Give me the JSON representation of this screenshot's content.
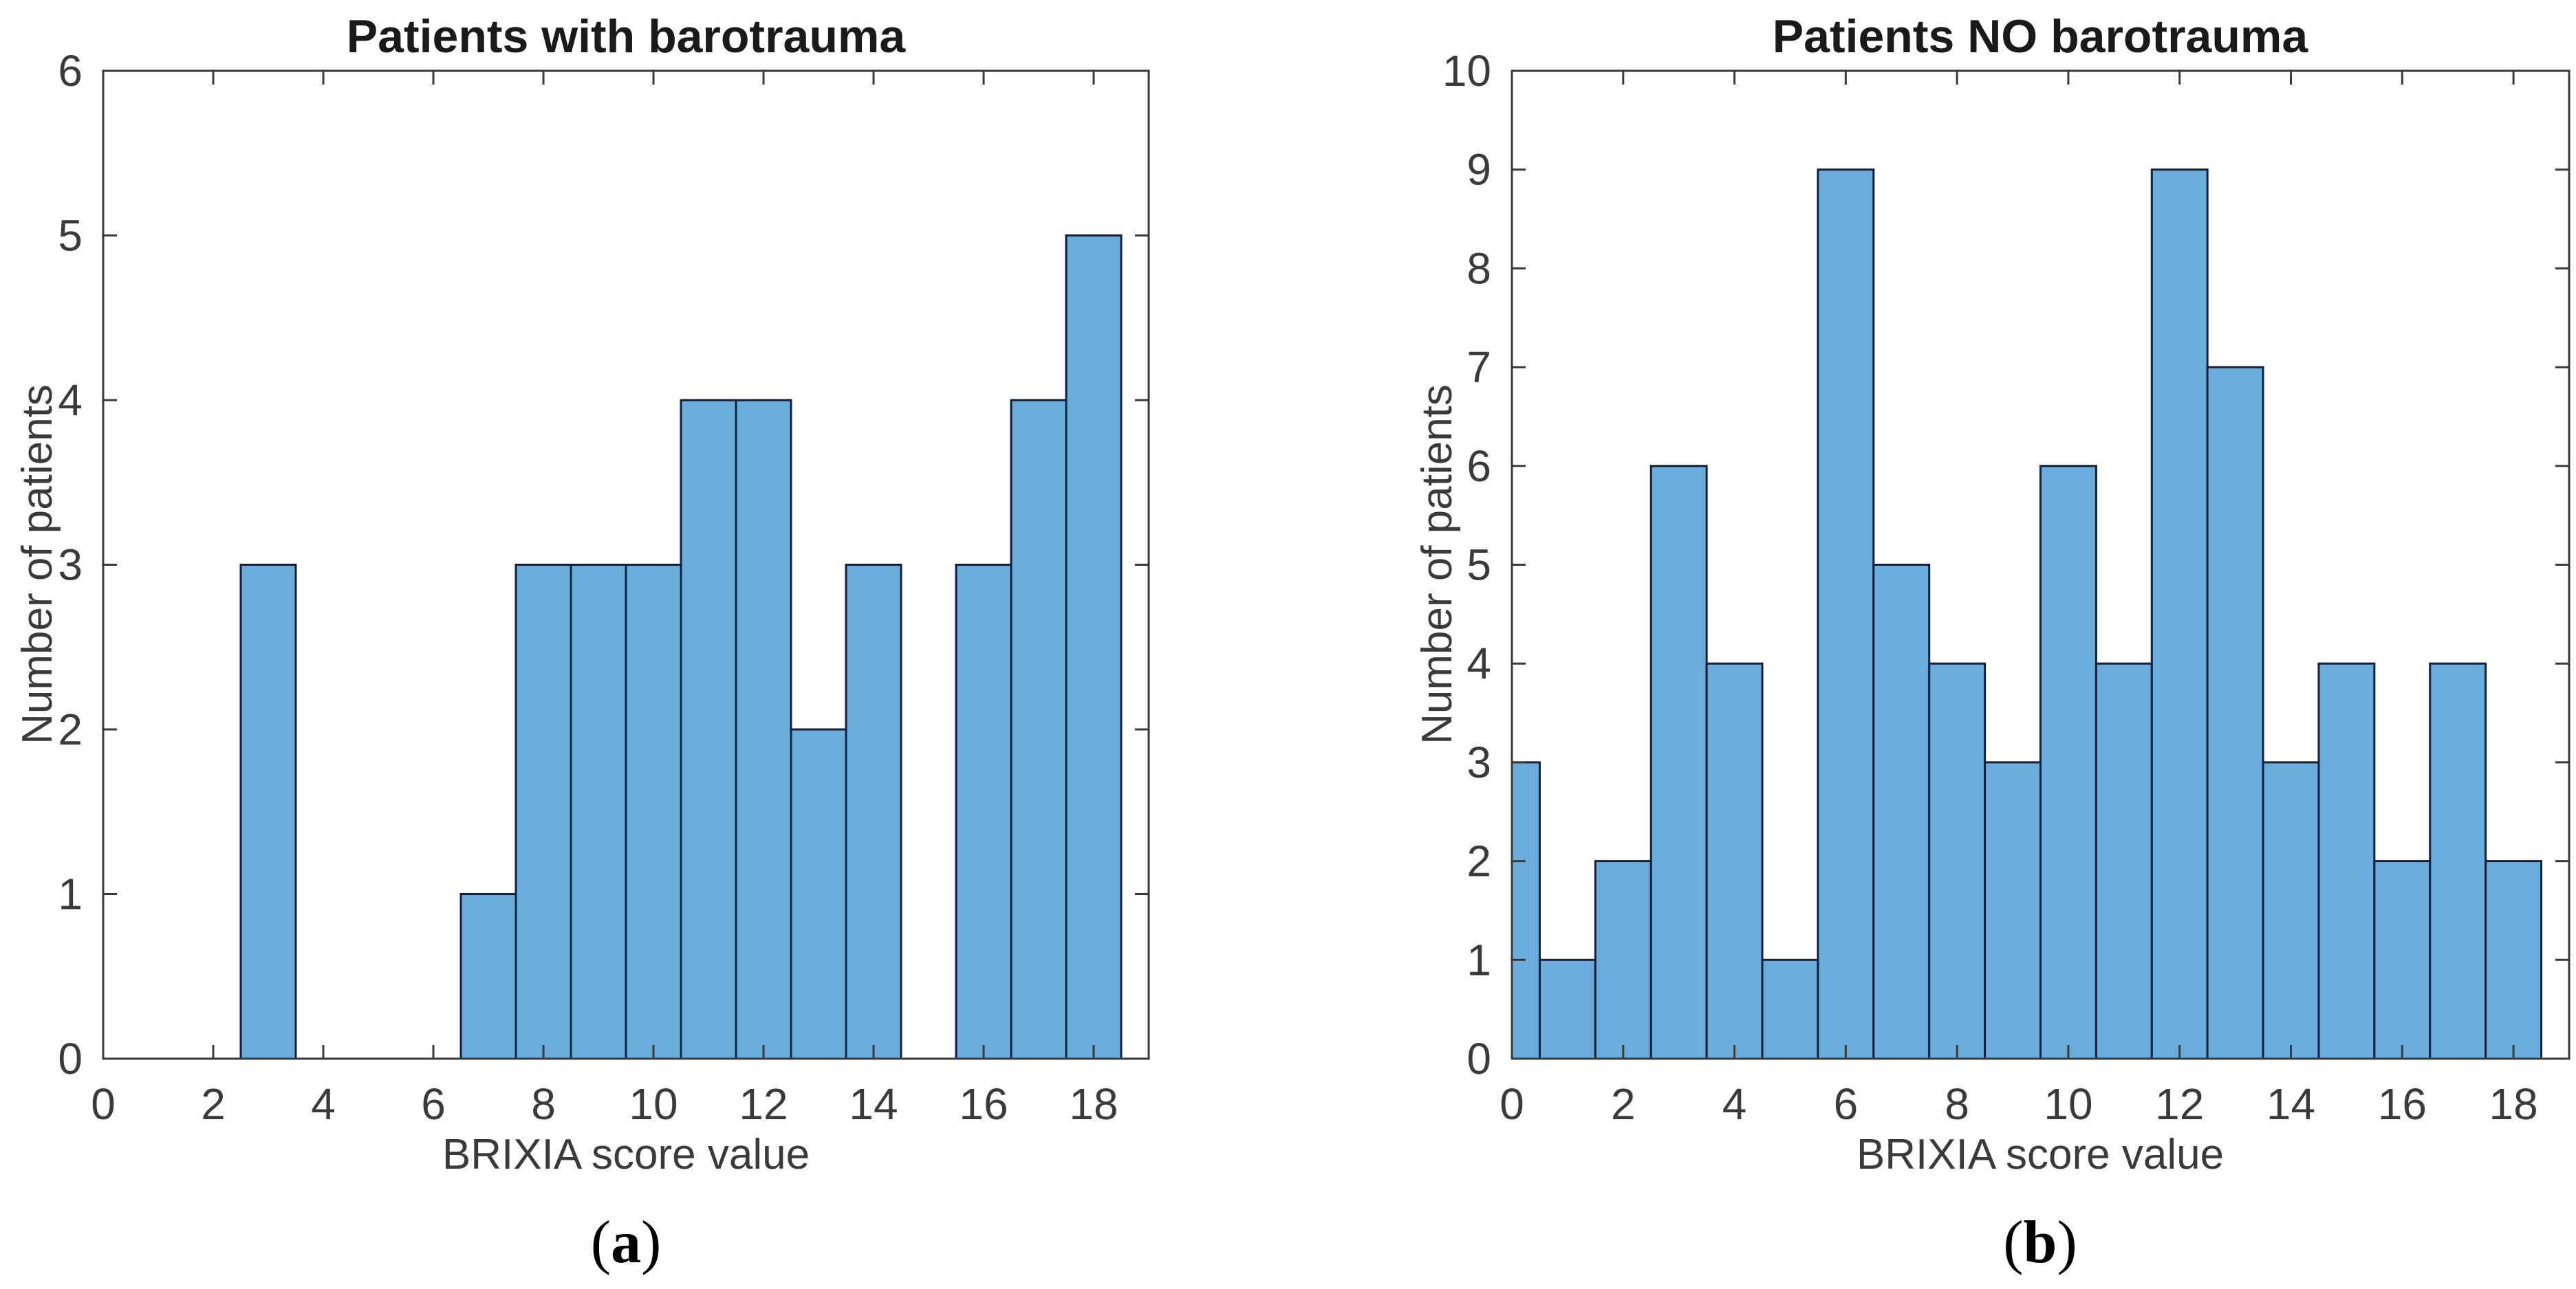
{
  "figure": {
    "background": "#ffffff",
    "bar_fill": "#6badda",
    "bar_edge": "#121f3d",
    "axis_color": "#3a3a3a",
    "label_color": "#3a3a3a",
    "title_color": "#1a1a1a"
  },
  "chart_data": [
    {
      "panel": "a",
      "type": "bar",
      "chart_kind": "histogram",
      "title": "Patients with barotrauma",
      "xlabel": "BRIXIA score value",
      "ylabel": "Number of patients",
      "caption": {
        "open": "(",
        "letter": "a",
        "close": ")"
      },
      "xlim": [
        0,
        19
      ],
      "ylim": [
        0,
        6
      ],
      "xticks": [
        0,
        2,
        4,
        6,
        8,
        10,
        12,
        14,
        16,
        18
      ],
      "yticks": [
        0,
        1,
        2,
        3,
        4,
        5,
        6
      ],
      "bin_width": 1,
      "bin_centers": [
        3,
        7,
        8,
        9,
        10,
        11,
        12,
        13,
        14,
        16,
        17,
        18
      ],
      "counts": [
        3,
        1,
        3,
        3,
        3,
        4,
        4,
        2,
        3,
        3,
        4,
        5
      ],
      "grid": false,
      "legend": null
    },
    {
      "panel": "b",
      "type": "bar",
      "chart_kind": "histogram",
      "title": "Patients NO barotrauma",
      "xlabel": "BRIXIA score value",
      "ylabel": "Number of patients",
      "caption": {
        "open": "(",
        "letter": "b",
        "close": ")"
      },
      "xlim": [
        0,
        19
      ],
      "ylim": [
        0,
        10
      ],
      "xticks": [
        0,
        2,
        4,
        6,
        8,
        10,
        12,
        14,
        16,
        18
      ],
      "yticks": [
        0,
        1,
        2,
        3,
        4,
        5,
        6,
        7,
        8,
        9,
        10
      ],
      "bin_width": 1,
      "bin_centers": [
        0,
        1,
        2,
        3,
        4,
        5,
        6,
        7,
        8,
        9,
        10,
        11,
        12,
        13,
        14,
        15,
        16,
        17,
        18
      ],
      "counts": [
        3,
        1,
        2,
        6,
        4,
        1,
        9,
        5,
        4,
        3,
        6,
        4,
        9,
        7,
        3,
        4,
        2,
        4,
        2
      ],
      "grid": false,
      "legend": null
    }
  ]
}
